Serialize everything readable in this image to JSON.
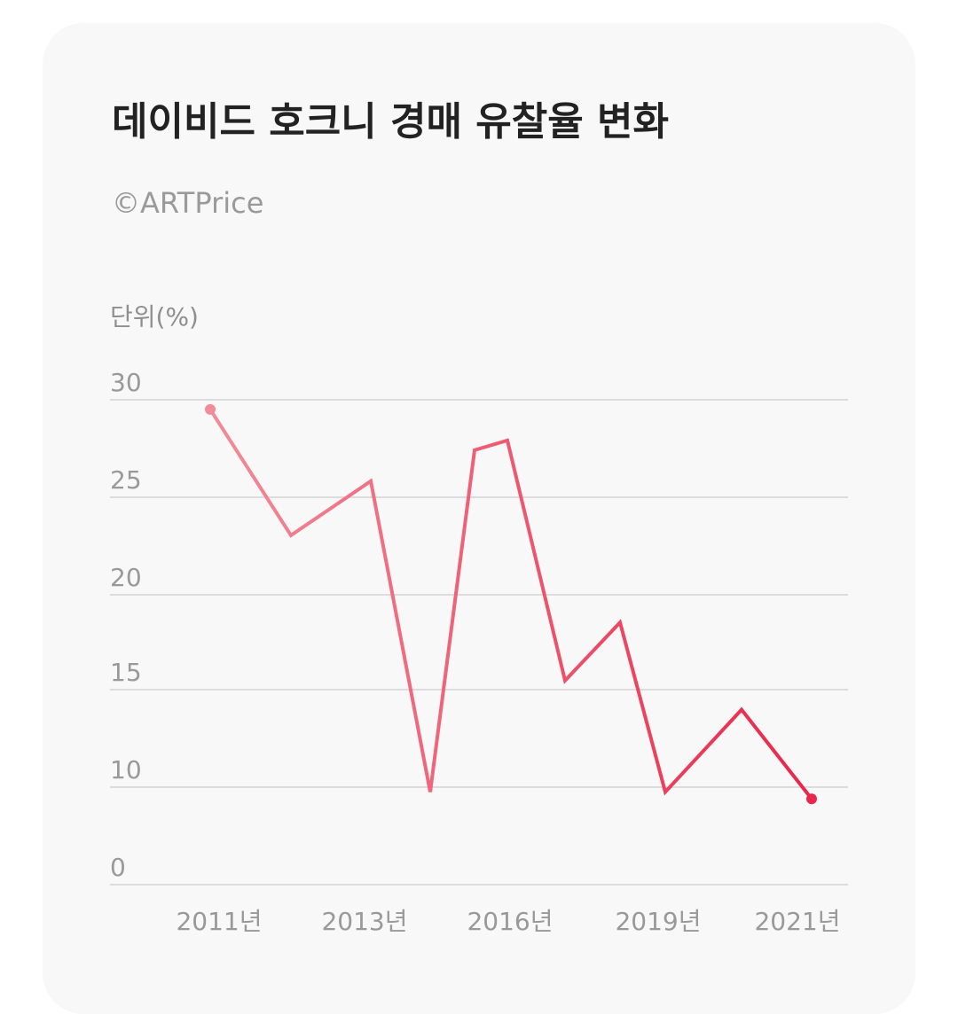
{
  "title": "데이비드 호크니 경매 유찰율 변화",
  "source": "©ARTPrice",
  "unit_label": "단위(%)",
  "colors": {
    "card_background": "#f8f8f8",
    "line_start": "#f28c98",
    "line_end": "#e8274a",
    "gridline": "#dcdcdc",
    "tick_text": "#999999"
  },
  "chart_data": {
    "type": "line",
    "title": "데이비드 호크니 경매 유찰율 변화",
    "ylabel": "단위(%)",
    "ylim": [
      0,
      30
    ],
    "y_ticks": [
      "30",
      "25",
      "20",
      "15",
      "10",
      "0"
    ],
    "y_tick_values": [
      30,
      25,
      20,
      15,
      10,
      0
    ],
    "x_tick_labels": [
      "2011년",
      "2013년",
      "2016년",
      "2019년",
      "2021년"
    ],
    "grid": true,
    "series": [
      {
        "x": [
          2011,
          2012,
          2013,
          2014,
          2015,
          2016,
          2017,
          2018,
          2019,
          2020,
          2021
        ],
        "values": [
          29.5,
          23,
          25.8,
          9.5,
          27.4,
          27.9,
          15.5,
          18.5,
          9.5,
          14,
          8.8
        ]
      }
    ]
  }
}
